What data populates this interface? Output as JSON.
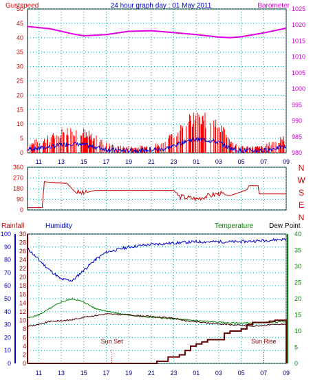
{
  "title": "24 hour graph day : 01 May 2011",
  "x_ticks": [
    "11",
    "13",
    "15",
    "17",
    "19",
    "21",
    "23",
    "01",
    "03",
    "05",
    "07",
    "09"
  ],
  "colors": {
    "wind": "#ff0000",
    "barometer": "#e000e0",
    "avgwind": "#0000d0",
    "gust_green": "#009000",
    "direction": "#cc0000",
    "humidity": "#0000cc",
    "temperature": "#008000",
    "dewpoint": "#400000",
    "rainfall": "#600000",
    "grid": "#00a0a0"
  },
  "chart_data": [
    {
      "type": "line",
      "left_label": "Gustspeed",
      "right_label": "Barometer",
      "left_ticks": [
        "0",
        "5",
        "10",
        "15",
        "20",
        "25",
        "30",
        "35",
        "40",
        "45",
        "50"
      ],
      "right_ticks": [
        "980",
        "985",
        "990",
        "995",
        "1000",
        "1005",
        "1010",
        "1015",
        "1020",
        "1025"
      ],
      "ylim_left": [
        0,
        50
      ],
      "ylim_right": [
        980,
        1025
      ],
      "barometer": [
        [
          10,
          1019.5
        ],
        [
          12,
          1018.8
        ],
        [
          14,
          1017.2
        ],
        [
          15,
          1016.6
        ],
        [
          17,
          1017.0
        ],
        [
          19,
          1018.0
        ],
        [
          21,
          1018.2
        ],
        [
          23,
          1017.6
        ],
        [
          1,
          1017.0
        ],
        [
          3,
          1016.2
        ],
        [
          4,
          1016.0
        ],
        [
          5,
          1016.3
        ],
        [
          7,
          1017.5
        ],
        [
          9,
          1019.0
        ]
      ],
      "gust_bursts": [
        [
          10,
          3
        ],
        [
          11,
          4
        ],
        [
          12,
          5
        ],
        [
          13,
          7
        ],
        [
          14,
          8
        ],
        [
          15,
          7
        ],
        [
          16,
          5
        ],
        [
          17,
          3
        ],
        [
          18,
          2
        ],
        [
          20,
          2
        ],
        [
          22,
          3
        ],
        [
          23,
          6
        ],
        [
          0,
          10
        ],
        [
          1,
          12
        ],
        [
          2,
          11
        ],
        [
          3,
          9
        ],
        [
          4,
          4
        ],
        [
          5,
          2
        ],
        [
          7,
          2
        ],
        [
          8,
          4
        ],
        [
          9,
          5
        ]
      ]
    },
    {
      "type": "line",
      "right_label_letters": [
        "N",
        "W",
        "S",
        "E",
        "N"
      ],
      "left_ticks": [
        "0",
        "90",
        "180",
        "270",
        "360"
      ],
      "ylim": [
        0,
        360
      ],
      "direction": [
        [
          10,
          20
        ],
        [
          11.3,
          20
        ],
        [
          11.5,
          240
        ],
        [
          12,
          230
        ],
        [
          13.5,
          225
        ],
        [
          14.2,
          155
        ],
        [
          15,
          140
        ],
        [
          16,
          165
        ],
        [
          21,
          165
        ],
        [
          23,
          165
        ],
        [
          23.5,
          115
        ],
        [
          1,
          95
        ],
        [
          3,
          140
        ],
        [
          4,
          120
        ],
        [
          5.5,
          170
        ],
        [
          5.7,
          205
        ],
        [
          6.5,
          205
        ],
        [
          6.6,
          135
        ],
        [
          9,
          135
        ]
      ]
    },
    {
      "type": "line",
      "labels": {
        "rainfall": "Rainfall",
        "humidity": "Humidity",
        "temperature": "Temperature",
        "dewpoint": "Dew Point"
      },
      "humidity_ticks": [
        "0",
        "10",
        "20",
        "30",
        "40",
        "50",
        "60",
        "70",
        "80",
        "90",
        "100"
      ],
      "rain_ticks": [
        "0",
        "2",
        "4",
        "6",
        "8",
        "10",
        "12",
        "14",
        "16",
        "18",
        "20",
        "22",
        "24",
        "26",
        "28",
        "30"
      ],
      "temp_ticks": [
        "0",
        "5",
        "10",
        "15",
        "20",
        "25",
        "30",
        "35",
        "40"
      ],
      "ylim_humidity": [
        0,
        100
      ],
      "ylim_rain": [
        0,
        30
      ],
      "ylim_temp": [
        0,
        40
      ],
      "humidity": [
        [
          10,
          89
        ],
        [
          11,
          80
        ],
        [
          12,
          72
        ],
        [
          13,
          65
        ],
        [
          14,
          64
        ],
        [
          15,
          72
        ],
        [
          16,
          80
        ],
        [
          17,
          86
        ],
        [
          19,
          90
        ],
        [
          21,
          92
        ],
        [
          23,
          93
        ],
        [
          1,
          94
        ],
        [
          3,
          94
        ],
        [
          5,
          94
        ],
        [
          7,
          95
        ],
        [
          9,
          96
        ]
      ],
      "temperature": [
        [
          10,
          14
        ],
        [
          11,
          15
        ],
        [
          12,
          17
        ],
        [
          13,
          19
        ],
        [
          14,
          20
        ],
        [
          15,
          19
        ],
        [
          16,
          17
        ],
        [
          18,
          15.5
        ],
        [
          20,
          14.5
        ],
        [
          22,
          14
        ],
        [
          0,
          13.5
        ],
        [
          2,
          13
        ],
        [
          4,
          12.5
        ],
        [
          6,
          12.5
        ],
        [
          8,
          12.8
        ],
        [
          9,
          13
        ]
      ],
      "dewpoint": [
        [
          10,
          11.5
        ],
        [
          11,
          12
        ],
        [
          12,
          13
        ],
        [
          13,
          13.2
        ],
        [
          14,
          13.5
        ],
        [
          15,
          14.3
        ],
        [
          17,
          15.3
        ],
        [
          19,
          15
        ],
        [
          21,
          14.5
        ],
        [
          23,
          14
        ],
        [
          0,
          13.2
        ],
        [
          2,
          12.5
        ],
        [
          4,
          12
        ],
        [
          6,
          11.5
        ],
        [
          8,
          12
        ],
        [
          9,
          12.2
        ]
      ],
      "rainfall": [
        [
          10,
          0
        ],
        [
          20,
          0
        ],
        [
          21.5,
          0.5
        ],
        [
          22.5,
          1.5
        ],
        [
          23.5,
          2
        ],
        [
          0,
          3
        ],
        [
          0.5,
          4
        ],
        [
          1,
          4.5
        ],
        [
          1.5,
          5
        ],
        [
          2,
          5.5
        ],
        [
          3,
          5.5
        ],
        [
          3.5,
          7
        ],
        [
          4,
          7.5
        ],
        [
          5,
          8
        ],
        [
          5.5,
          9
        ],
        [
          6,
          9.5
        ],
        [
          7,
          9.5
        ],
        [
          7.5,
          9.8
        ],
        [
          8,
          10
        ],
        [
          9,
          10
        ]
      ],
      "annotations": [
        {
          "text": "Sun Set",
          "x": 17.5
        },
        {
          "text": "Sun Rise",
          "x": 7.0
        }
      ]
    }
  ]
}
